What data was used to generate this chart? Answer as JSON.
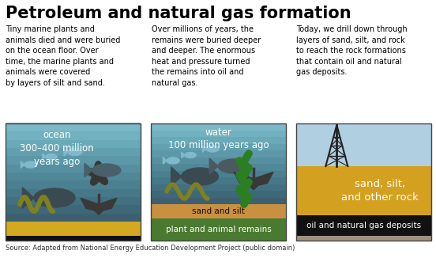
{
  "title": "Petroleum and natural gas formation",
  "source": "Source: Adapted from National Energy Education Development Project (public domain)",
  "panel1_text": "Tiny marine plants and\nanimals died and were buried\non the ocean floor. Over\ntime, the marine plants and\nanimals were covered\nby layers of silt and sand.",
  "panel2_text": "Over millions of years, the\nremains were buried deeper\nand deeper. The enormous\nheat and pressure turned\nthe remains into oil and\nnatural gas.",
  "panel3_text": "Today, we drill down through\nlayers of sand, silt, and rock\nto reach the rock formations\nthat contain oil and natural\ngas deposits.",
  "panel1_label": "ocean\n300–400 million\nyears ago",
  "panel2_label": "water\n100 million years ago",
  "panel3_sand_label": "sand, silt,\nand other rock",
  "panel3_oil_label": "oil and natural gas deposits",
  "panel2_sand_label": "sand and silt",
  "panel2_remain_label": "plant and animal remains",
  "water_top": "#7ab5c8",
  "water_mid": "#5a8fa8",
  "water_deep": "#3d6878",
  "water_darker": "#3a5f70",
  "sand_yellow": "#d4a020",
  "sand_tan": "#c89848",
  "dark_bottom": "#111111",
  "green_remain": "#4a7a30",
  "silt_brown": "#b88040",
  "sky_blue": "#b0cfe0",
  "oil_black": "#111111",
  "brown_layer": "#9a7a55",
  "darker_tan": "#b87828"
}
